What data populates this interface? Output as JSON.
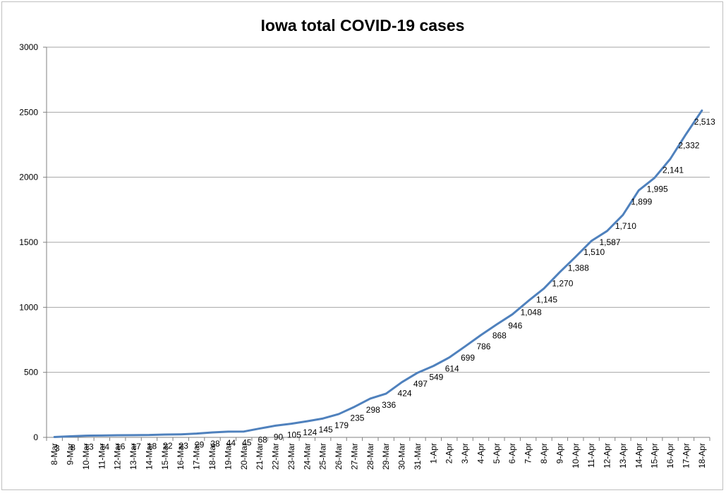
{
  "chart_data": {
    "type": "line",
    "title": "Iowa total COVID-19 cases",
    "xlabel": "",
    "ylabel": "",
    "ylim": [
      0,
      3000
    ],
    "yticks": [
      "0",
      "500",
      "1000",
      "1500",
      "2000",
      "2500",
      "3000"
    ],
    "grid": true,
    "categories": [
      "8-Mar",
      "9-Mar",
      "10-Mar",
      "11-Mar",
      "12-Mar",
      "13-Mar",
      "14-Mar",
      "15-Mar",
      "16-Mar",
      "17-Mar",
      "18-Mar",
      "19-Mar",
      "20-Mar",
      "21-Mar",
      "22-Mar",
      "23-Mar",
      "24-Mar",
      "25-Mar",
      "26-Mar",
      "27-Mar",
      "28-Mar",
      "29-Mar",
      "30-Mar",
      "31-Mar",
      "1-Apr",
      "2-Apr",
      "3-Apr",
      "4-Apr",
      "5-Apr",
      "6-Apr",
      "7-Apr",
      "8-Apr",
      "9-Apr",
      "10-Apr",
      "11-Apr",
      "12-Apr",
      "13-Apr",
      "14-Apr",
      "15-Apr",
      "16-Apr",
      "17-Apr",
      "18-Apr"
    ],
    "series": [
      {
        "color": "#4f81bd",
        "values": [
          3,
          8,
          13,
          14,
          16,
          17,
          18,
          22,
          23,
          29,
          38,
          44,
          45,
          68,
          90,
          105,
          124,
          145,
          179,
          235,
          298,
          336,
          424,
          497,
          549,
          614,
          699,
          786,
          868,
          946,
          1048,
          1145,
          1270,
          1388,
          1510,
          1587,
          1710,
          1899,
          1995,
          2141,
          2332,
          2513
        ],
        "data_labels": [
          "3",
          "8",
          "13",
          "14",
          "16",
          "17",
          "18",
          "22",
          "23",
          "29",
          "38",
          "44",
          "45",
          "68",
          "90",
          "105",
          "124",
          "145",
          "179",
          "235",
          "298",
          "336",
          "424",
          "497",
          "549",
          "614",
          "699",
          "786",
          "868",
          "946",
          "1,048",
          "1,145",
          "1,270",
          "1,388",
          "1,510",
          "1,587",
          "1,710",
          "1,899",
          "1,995",
          "2,141",
          "2,332",
          "2,513"
        ]
      }
    ]
  }
}
